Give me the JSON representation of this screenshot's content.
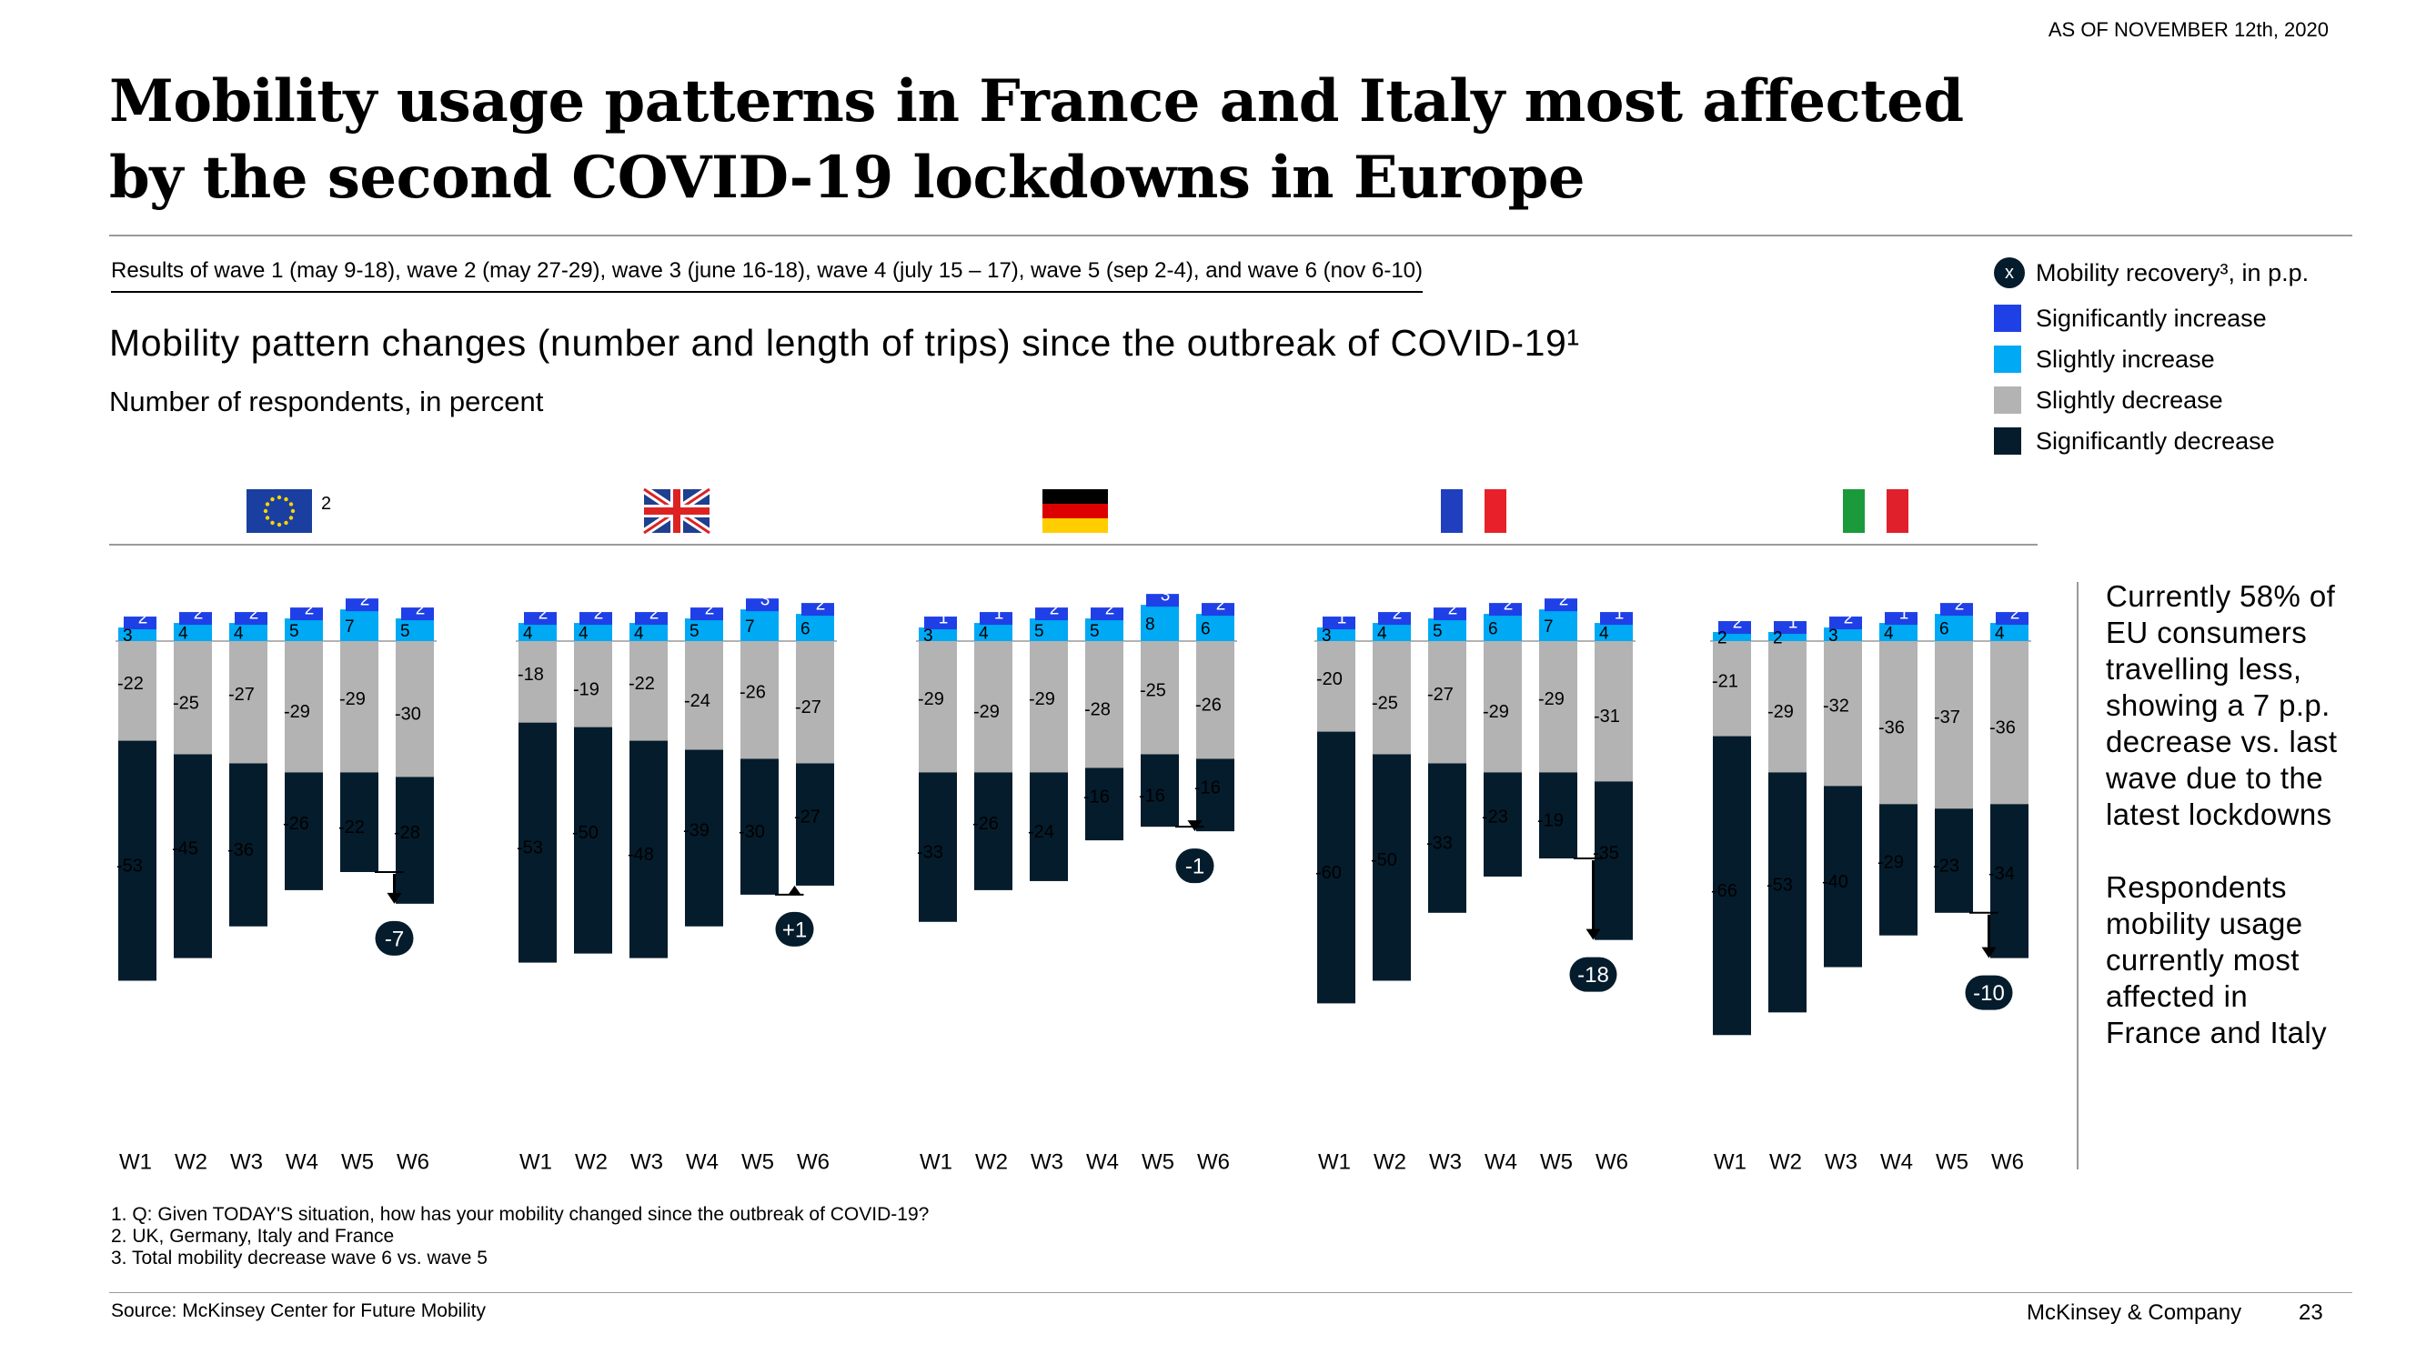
{
  "header": {
    "as_of": "AS OF NOVEMBER 12th, 2020",
    "title_line1": "Mobility usage patterns in France and Italy most affected",
    "title_line2": "by the second COVID-19 lockdowns in Europe"
  },
  "waves_note": "Results of wave 1 (may 9-18), wave 2 (may 27-29), wave 3 (june 16-18), wave 4 (july 15 – 17), wave 5 (sep 2-4), and wave 6 (nov 6-10)",
  "chart_heading": {
    "title": "Mobility pattern changes (number and length of trips) since the outbreak of COVID-19¹",
    "subtitle": "Number of respondents, in percent"
  },
  "legend": {
    "recovery": "Mobility recovery³, in p.p.",
    "recovery_marker": "x",
    "items": [
      {
        "label": "Significantly increase",
        "color": "#1f40e6"
      },
      {
        "label": "Slightly increase",
        "color": "#00a9f4"
      },
      {
        "label": "Slightly decrease",
        "color": "#b3b3b3"
      },
      {
        "label": "Significantly decrease",
        "color": "#051c2c"
      }
    ]
  },
  "chart_data": {
    "type": "bar",
    "stacked": true,
    "categories": [
      "W1",
      "W2",
      "W3",
      "W4",
      "W5",
      "W6"
    ],
    "colors": {
      "significantly_increase": "#1f40e6",
      "slightly_increase": "#00a9f4",
      "slightly_decrease": "#b3b3b3",
      "significantly_decrease": "#051c2c"
    },
    "panels": [
      {
        "flag": "eu-flag",
        "flag_footnote": "2",
        "significantly_increase": [
          2,
          2,
          2,
          2,
          2,
          2
        ],
        "slightly_increase": [
          3,
          4,
          4,
          5,
          7,
          5
        ],
        "slightly_decrease": [
          -22,
          -25,
          -27,
          -29,
          -29,
          -30
        ],
        "significantly_decrease": [
          -53,
          -45,
          -36,
          -26,
          -22,
          -28
        ],
        "recovery": "-7"
      },
      {
        "flag": "uk-flag",
        "flag_footnote": "",
        "significantly_increase": [
          2,
          2,
          2,
          2,
          3,
          2
        ],
        "slightly_increase": [
          4,
          4,
          4,
          5,
          7,
          6
        ],
        "slightly_decrease": [
          -18,
          -19,
          -22,
          -24,
          -26,
          -27
        ],
        "significantly_decrease": [
          -53,
          -50,
          -48,
          -39,
          -30,
          -27
        ],
        "recovery": "+1"
      },
      {
        "flag": "germany-flag",
        "flag_footnote": "",
        "significantly_increase": [
          1,
          1,
          2,
          2,
          3,
          2
        ],
        "slightly_increase": [
          3,
          4,
          5,
          5,
          8,
          6
        ],
        "slightly_decrease": [
          -29,
          -29,
          -29,
          -28,
          -25,
          -26
        ],
        "significantly_decrease": [
          -33,
          -26,
          -24,
          -16,
          -16,
          -16
        ],
        "recovery": "-1"
      },
      {
        "flag": "france-flag",
        "flag_footnote": "",
        "significantly_increase": [
          1,
          2,
          2,
          2,
          2,
          1
        ],
        "slightly_increase": [
          3,
          4,
          5,
          6,
          7,
          4
        ],
        "slightly_decrease": [
          -20,
          -25,
          -27,
          -29,
          -29,
          -31
        ],
        "significantly_decrease": [
          -60,
          -50,
          -33,
          -23,
          -19,
          -35
        ],
        "recovery": "-18"
      },
      {
        "flag": "italy-flag",
        "flag_footnote": "",
        "significantly_increase": [
          2,
          1,
          2,
          1,
          2,
          2
        ],
        "slightly_increase": [
          2,
          2,
          3,
          4,
          6,
          4
        ],
        "slightly_decrease": [
          -21,
          -29,
          -32,
          -36,
          -37,
          -36
        ],
        "significantly_decrease": [
          -66,
          -53,
          -40,
          -29,
          -23,
          -34
        ],
        "recovery": "-10"
      }
    ]
  },
  "side_note": {
    "p1": "Currently 58% of EU consumers travelling less, showing a 7 p.p. decrease vs. last wave due to the latest lockdowns",
    "p2": "Respondents mobility usage currently most affected in France and Italy"
  },
  "footnotes": [
    "1. Q: Given TODAY'S situation, how has your mobility changed since the outbreak of COVID-19?",
    "2. UK, Germany, Italy and France",
    "3. Total mobility decrease wave 6 vs. wave 5"
  ],
  "source": "Source: McKinsey Center for Future Mobility",
  "brand": "McKinsey & Company",
  "page_number": "23"
}
